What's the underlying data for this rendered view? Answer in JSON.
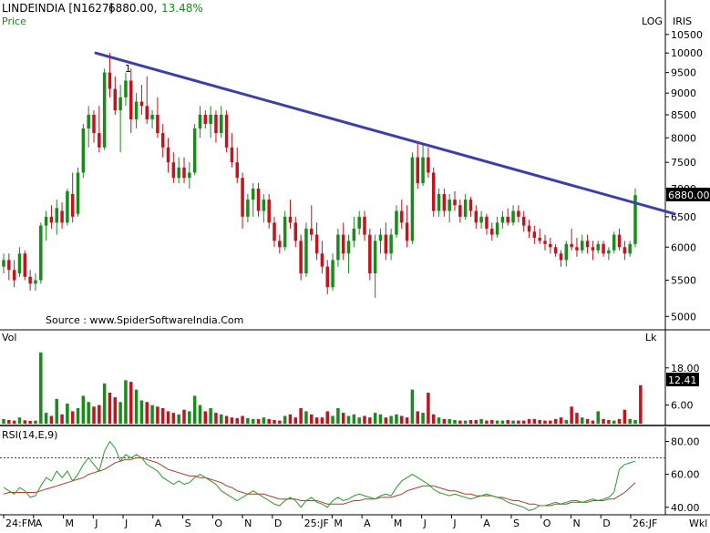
{
  "header": {
    "symbol": "LINDEINDIA [N1627]",
    "price": "6880.00,",
    "change": "13.48%",
    "price_label": "Price",
    "log_label": "LOG",
    "iris_label": "IRIS"
  },
  "source": "Source : www.SpiderSoftwareIndia.Com",
  "annotation": "1",
  "price_badge": "6880.00",
  "volume_badge": "12.41",
  "colors": {
    "up": "#1a8a1a",
    "down": "#c0141e",
    "trendline": "#3b3fa8",
    "rsi": "#2a9a2a",
    "rsi_ema": "#b23a2a",
    "badge_bg": "#000000",
    "header_green": "#1a8a1a"
  },
  "chart_data": [
    {
      "type": "candlestick",
      "panel": "price",
      "scale": "log",
      "ylim": [
        4850,
        10700
      ],
      "yticks": [
        "10500",
        "10000",
        "9500",
        "9000",
        "8500",
        "8000",
        "7500",
        "7000",
        "6500",
        "6000",
        "5500",
        "5000"
      ],
      "xlabels": [
        "24:FM",
        "A",
        "M",
        "J",
        "J",
        "A",
        "S",
        "O",
        "N",
        "D",
        "25:JF",
        "M",
        "A",
        "M",
        "J",
        "J",
        "A",
        "S",
        "O",
        "N",
        "D",
        "26:JF"
      ],
      "trendline": {
        "from": 10000,
        "to": 6550
      },
      "candles": [
        [
          5700,
          5900,
          5600,
          5800
        ],
        [
          5800,
          5900,
          5500,
          5650
        ],
        [
          5650,
          5800,
          5400,
          5500
        ],
        [
          5600,
          6000,
          5550,
          5900
        ],
        [
          5900,
          5950,
          5500,
          5550
        ],
        [
          5550,
          5650,
          5350,
          5450
        ],
        [
          5450,
          5600,
          5350,
          5500
        ],
        [
          5500,
          6400,
          5450,
          6350
        ],
        [
          6350,
          6600,
          6100,
          6500
        ],
        [
          6500,
          6700,
          6300,
          6400
        ],
        [
          6400,
          6800,
          6200,
          6650
        ],
        [
          6600,
          6750,
          6300,
          6400
        ],
        [
          6400,
          7000,
          6350,
          6950
        ],
        [
          6900,
          7300,
          6400,
          6500
        ],
        [
          6550,
          7400,
          6500,
          7300
        ],
        [
          7300,
          8300,
          7200,
          8200
        ],
        [
          8200,
          8700,
          7800,
          8500
        ],
        [
          8500,
          8600,
          7900,
          8100
        ],
        [
          8100,
          8700,
          7700,
          7800
        ],
        [
          7800,
          9600,
          7750,
          9500
        ],
        [
          9500,
          10000,
          8900,
          9100
        ],
        [
          9100,
          9400,
          8500,
          8600
        ],
        [
          8600,
          9200,
          7700,
          8900
        ],
        [
          8900,
          9500,
          8700,
          9300
        ],
        [
          9300,
          9600,
          8100,
          8400
        ],
        [
          8400,
          9000,
          8200,
          8800
        ],
        [
          8800,
          9200,
          8500,
          8700
        ],
        [
          8700,
          9400,
          8300,
          8400
        ],
        [
          8400,
          8600,
          8200,
          8500
        ],
        [
          8500,
          8900,
          8000,
          8100
        ],
        [
          8100,
          8300,
          7600,
          7800
        ],
        [
          7800,
          8000,
          7300,
          7500
        ],
        [
          7500,
          7700,
          7100,
          7200
        ],
        [
          7200,
          7600,
          7100,
          7400
        ],
        [
          7400,
          7600,
          7100,
          7200
        ],
        [
          7200,
          7500,
          7000,
          7300
        ],
        [
          7300,
          8300,
          7250,
          8200
        ],
        [
          8200,
          8700,
          8000,
          8500
        ],
        [
          8500,
          8600,
          8200,
          8300
        ],
        [
          8300,
          8700,
          8000,
          8500
        ],
        [
          8500,
          8600,
          7900,
          8100
        ],
        [
          8100,
          8700,
          8000,
          8500
        ],
        [
          8500,
          8600,
          7700,
          7800
        ],
        [
          7800,
          8100,
          7400,
          7500
        ],
        [
          7500,
          7800,
          7100,
          7200
        ],
        [
          7200,
          7300,
          6300,
          6500
        ],
        [
          6500,
          6900,
          6400,
          6800
        ],
        [
          6800,
          7100,
          6500,
          7000
        ],
        [
          7000,
          7100,
          6500,
          6600
        ],
        [
          6600,
          6900,
          6400,
          6800
        ],
        [
          6800,
          6900,
          6300,
          6400
        ],
        [
          6400,
          6500,
          6000,
          6100
        ],
        [
          6100,
          6200,
          5900,
          6000
        ],
        [
          6000,
          6600,
          5950,
          6500
        ],
        [
          6500,
          6800,
          6300,
          6400
        ],
        [
          6400,
          6500,
          6000,
          6100
        ],
        [
          6100,
          6200,
          5500,
          5600
        ],
        [
          5600,
          6400,
          5550,
          6300
        ],
        [
          6300,
          6700,
          6100,
          6200
        ],
        [
          6200,
          6400,
          5800,
          5900
        ],
        [
          5900,
          6100,
          5600,
          5700
        ],
        [
          5700,
          5800,
          5300,
          5400
        ],
        [
          5400,
          5900,
          5350,
          5800
        ],
        [
          5800,
          6300,
          5700,
          6200
        ],
        [
          6200,
          6400,
          5800,
          5900
        ],
        [
          5900,
          6200,
          5600,
          6100
        ],
        [
          6100,
          6500,
          6000,
          6300
        ],
        [
          6300,
          6600,
          6200,
          6500
        ],
        [
          6500,
          6600,
          6100,
          6200
        ],
        [
          6200,
          6300,
          5500,
          5600
        ],
        [
          5600,
          6200,
          5250,
          6100
        ],
        [
          6100,
          6300,
          5900,
          6200
        ],
        [
          6200,
          6400,
          5800,
          5900
        ],
        [
          5900,
          6300,
          5800,
          6200
        ],
        [
          6200,
          6700,
          6150,
          6600
        ],
        [
          6600,
          6800,
          6300,
          6400
        ],
        [
          6400,
          6700,
          6000,
          6100
        ],
        [
          6100,
          7700,
          6050,
          7600
        ],
        [
          7600,
          7900,
          7000,
          7100
        ],
        [
          7100,
          7900,
          7050,
          7600
        ],
        [
          7600,
          7800,
          7200,
          7300
        ],
        [
          7300,
          7400,
          6500,
          6600
        ],
        [
          6600,
          7000,
          6500,
          6900
        ],
        [
          6900,
          7000,
          6500,
          6600
        ],
        [
          6600,
          6900,
          6400,
          6800
        ],
        [
          6800,
          6950,
          6600,
          6700
        ],
        [
          6700,
          6800,
          6400,
          6500
        ],
        [
          6500,
          6900,
          6450,
          6800
        ],
        [
          6800,
          6850,
          6500,
          6600
        ],
        [
          6600,
          6700,
          6300,
          6400
        ],
        [
          6400,
          6600,
          6300,
          6500
        ],
        [
          6500,
          6550,
          6200,
          6300
        ],
        [
          6300,
          6400,
          6100,
          6200
        ],
        [
          6200,
          6500,
          6150,
          6400
        ],
        [
          6400,
          6600,
          6300,
          6500
        ],
        [
          6500,
          6650,
          6350,
          6400
        ],
        [
          6400,
          6700,
          6350,
          6600
        ],
        [
          6600,
          6700,
          6400,
          6500
        ],
        [
          6500,
          6600,
          6250,
          6350
        ],
        [
          6350,
          6450,
          6150,
          6250
        ],
        [
          6250,
          6350,
          6050,
          6150
        ],
        [
          6150,
          6300,
          6050,
          6100
        ],
        [
          6100,
          6200,
          5950,
          6050
        ],
        [
          6050,
          6150,
          5900,
          6000
        ],
        [
          6000,
          6050,
          5850,
          5900
        ],
        [
          5900,
          5950,
          5700,
          5800
        ],
        [
          5800,
          6100,
          5700,
          6050
        ],
        [
          6050,
          6300,
          5950,
          6000
        ],
        [
          6000,
          6150,
          5850,
          5950
        ],
        [
          5950,
          6200,
          5900,
          6100
        ],
        [
          6100,
          6200,
          5900,
          6000
        ],
        [
          6000,
          6100,
          5800,
          5950
        ],
        [
          5950,
          6100,
          5900,
          6050
        ],
        [
          6050,
          6100,
          5850,
          5900
        ],
        [
          5900,
          6000,
          5800,
          5950
        ],
        [
          5950,
          6250,
          5900,
          6200
        ],
        [
          6200,
          6300,
          5950,
          6000
        ],
        [
          6000,
          6100,
          5800,
          5900
        ],
        [
          5900,
          6100,
          5850,
          6050
        ],
        [
          6050,
          7000,
          6000,
          6880
        ]
      ]
    },
    {
      "type": "bar",
      "panel": "volume",
      "unit": "Lk",
      "ylim": [
        0,
        25
      ],
      "yticks": [
        "18.00",
        "6.00"
      ],
      "values": [
        1.5,
        1.2,
        1.0,
        2.0,
        1.1,
        0.9,
        1.0,
        23.0,
        3.5,
        2.5,
        8.0,
        3.0,
        6.5,
        4.0,
        5.0,
        9.0,
        7.0,
        5.5,
        6.0,
        13.0,
        10.0,
        8.5,
        7.0,
        14.0,
        13.5,
        11.0,
        7.5,
        7.0,
        6.0,
        5.5,
        5.0,
        4.0,
        3.5,
        3.0,
        4.5,
        4.0,
        9.0,
        6.0,
        4.0,
        5.0,
        3.5,
        3.0,
        2.5,
        2.0,
        1.8,
        2.5,
        1.8,
        1.5,
        1.5,
        2.0,
        1.5,
        1.2,
        1.0,
        2.5,
        3.0,
        2.0,
        5.0,
        4.0,
        3.0,
        2.0,
        2.0,
        4.0,
        2.5,
        5.0,
        3.5,
        2.5,
        3.0,
        2.0,
        2.5,
        2.0,
        3.5,
        3.0,
        2.0,
        2.5,
        3.0,
        2.5,
        2.0,
        11.0,
        4.0,
        3.5,
        10.0,
        3.0,
        2.0,
        1.5,
        1.5,
        1.2,
        1.0,
        1.0,
        1.2,
        1.2,
        1.5,
        1.0,
        1.2,
        1.0,
        1.0,
        1.2,
        1.0,
        1.0,
        1.0,
        1.5,
        1.5,
        1.2,
        1.0,
        1.0,
        1.5,
        2.0,
        1.2,
        5.5,
        3.5,
        2.0,
        1.5,
        1.0,
        4.0,
        1.5,
        1.2,
        1.0,
        1.5,
        4.5,
        1.5,
        1.2,
        12.41
      ],
      "up": [
        1,
        0,
        0,
        1,
        0,
        0,
        1,
        1,
        1,
        0,
        1,
        0,
        1,
        0,
        1,
        1,
        1,
        0,
        0,
        1,
        0,
        0,
        1,
        1,
        0,
        1,
        1,
        0,
        1,
        0,
        0,
        0,
        0,
        1,
        0,
        1,
        1,
        1,
        0,
        1,
        0,
        1,
        0,
        0,
        0,
        0,
        1,
        1,
        0,
        1,
        0,
        0,
        0,
        1,
        0,
        0,
        0,
        1,
        0,
        0,
        0,
        0,
        1,
        1,
        0,
        1,
        1,
        1,
        0,
        0,
        1,
        1,
        0,
        1,
        1,
        0,
        0,
        1,
        0,
        1,
        0,
        0,
        1,
        0,
        1,
        1,
        0,
        1,
        0,
        0,
        1,
        0,
        0,
        1,
        1,
        0,
        1,
        0,
        0,
        0,
        0,
        0,
        0,
        0,
        0,
        0,
        1,
        0,
        0,
        1,
        0,
        0,
        1,
        0,
        0,
        1,
        0,
        0,
        1,
        1
      ]
    },
    {
      "type": "line",
      "panel": "rsi",
      "label": "RSI(14,E,9)",
      "ylim": [
        36,
        88
      ],
      "yticks": [
        "80.00",
        "60.00",
        "40.00"
      ],
      "reference": 70,
      "series": [
        {
          "role": "rsi",
          "values": [
            52,
            50,
            48,
            52,
            50,
            46,
            47,
            53,
            58,
            56,
            62,
            58,
            62,
            56,
            60,
            66,
            70,
            66,
            62,
            74,
            80,
            76,
            68,
            72,
            70,
            72,
            70,
            66,
            64,
            62,
            58,
            56,
            54,
            56,
            54,
            55,
            58,
            60,
            58,
            56,
            54,
            50,
            48,
            46,
            44,
            46,
            48,
            50,
            48,
            46,
            44,
            42,
            41,
            44,
            46,
            44,
            40,
            44,
            46,
            43,
            42,
            40,
            44,
            46,
            44,
            45,
            47,
            48,
            47,
            46,
            45,
            47,
            48,
            47,
            52,
            56,
            58,
            60,
            58,
            56,
            54,
            51,
            49,
            48,
            47,
            48,
            47,
            46,
            45,
            46,
            47,
            48,
            47,
            46,
            45,
            43,
            42,
            41,
            40,
            38,
            39,
            41,
            41,
            42,
            43,
            42,
            43,
            44,
            44,
            43,
            44,
            45,
            44,
            45,
            46,
            49,
            63,
            66,
            67,
            68
          ]
        },
        {
          "role": "ema",
          "values": [
            48,
            49,
            49,
            49,
            49,
            49,
            49,
            50,
            51,
            52,
            53,
            54,
            55,
            56,
            57,
            58,
            60,
            61,
            62,
            63,
            65,
            67,
            68,
            69,
            69,
            70,
            70,
            69,
            68,
            67,
            65,
            63,
            62,
            61,
            60,
            59,
            59,
            58,
            58,
            57,
            56,
            55,
            53,
            52,
            50,
            49,
            48,
            48,
            48,
            48,
            47,
            46,
            45,
            45,
            45,
            45,
            44,
            44,
            44,
            44,
            43,
            42,
            42,
            42,
            42,
            43,
            44,
            44,
            45,
            45,
            45,
            46,
            46,
            46,
            47,
            48,
            50,
            51,
            52,
            53,
            53,
            53,
            52,
            51,
            50,
            50,
            49,
            48,
            48,
            47,
            47,
            47,
            47,
            46,
            46,
            45,
            44,
            44,
            43,
            42,
            42,
            41,
            41,
            41,
            42,
            42,
            42,
            43,
            43,
            43,
            43,
            44,
            44,
            44,
            45,
            45,
            47,
            49,
            52,
            55
          ]
        }
      ],
      "xlabels": [
        "24:FM",
        "A",
        "M",
        "J",
        "J",
        "A",
        "S",
        "O",
        "N",
        "D",
        "25:JF",
        "M",
        "A",
        "M",
        "J",
        "J",
        "A",
        "S",
        "O",
        "N",
        "D",
        "26:JF"
      ]
    }
  ],
  "rsi_axis_right": "Wkl"
}
